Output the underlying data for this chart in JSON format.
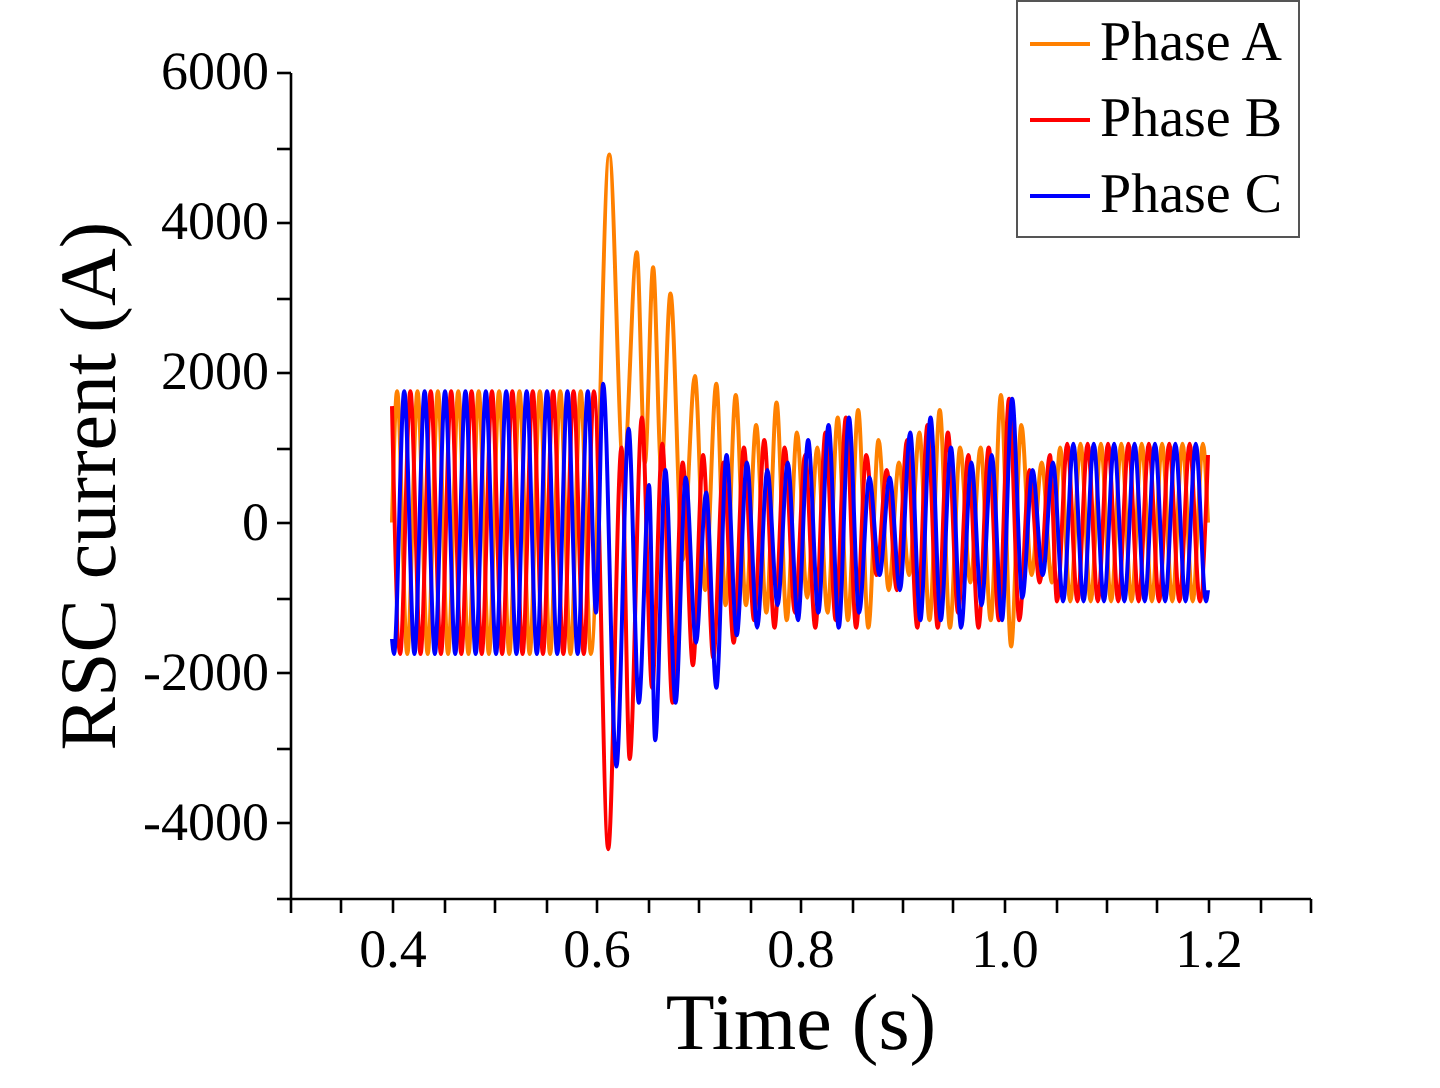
{
  "chart_data": {
    "type": "line",
    "xlabel": "Time (s)",
    "ylabel": "RSC current (A)",
    "xlim": [
      0.3,
      1.3
    ],
    "ylim": [
      -5000,
      6000
    ],
    "xticks": [
      {
        "value": 0.3,
        "label": null
      },
      {
        "value": 0.35,
        "label": null
      },
      0.4,
      {
        "value": 0.45,
        "label": null
      },
      {
        "value": 0.5,
        "label": null
      },
      {
        "value": 0.55,
        "label": null
      },
      0.6,
      {
        "value": 0.65,
        "label": null
      },
      {
        "value": 0.7,
        "label": null
      },
      {
        "value": 0.75,
        "label": null
      },
      0.8,
      {
        "value": 0.85,
        "label": null
      },
      {
        "value": 0.9,
        "label": null
      },
      {
        "value": 0.95,
        "label": null
      },
      {
        "value": 1,
        "label": "1.0"
      },
      {
        "value": 1.05,
        "label": null
      },
      {
        "value": 1.1,
        "label": null
      },
      {
        "value": 1.15,
        "label": null
      },
      1.2,
      {
        "value": 1.25,
        "label": null
      },
      {
        "value": 1.3,
        "label": null
      }
    ],
    "yticks": [
      {
        "value": -5000,
        "label": null
      },
      -4000,
      {
        "value": -3000,
        "label": null
      },
      -2000,
      {
        "value": -1000,
        "label": null
      },
      0,
      {
        "value": 1000,
        "label": null
      },
      2000,
      {
        "value": 3000,
        "label": null
      },
      4000,
      {
        "value": 5000,
        "label": null
      },
      6000
    ],
    "legend": "top right",
    "grid": false,
    "marker": "none",
    "line_style": "solid",
    "series": [
      {
        "name": "Phase A",
        "color": "#ff8000",
        "x": [
          0.4,
          0.405,
          0.415,
          0.425,
          0.435,
          0.445,
          0.455,
          0.465,
          0.475,
          0.485,
          0.495,
          0.505,
          0.515,
          0.525,
          0.535,
          0.545,
          0.555,
          0.565,
          0.575,
          0.585,
          0.595,
          0.613,
          0.627,
          0.64,
          0.648,
          0.656,
          0.664,
          0.673,
          0.685,
          0.697,
          0.707,
          0.718,
          0.727,
          0.737,
          0.747,
          0.757,
          0.767,
          0.777,
          0.787,
          0.797,
          0.807,
          0.817,
          0.827,
          0.837,
          0.847,
          0.857,
          0.867,
          0.877,
          0.887,
          0.897,
          0.907,
          0.917,
          0.927,
          0.937,
          0.947,
          0.957,
          0.967,
          0.977,
          0.987,
          0.997,
          1.007,
          1.017,
          1.027,
          1.037,
          1.047,
          1.055,
          1.065,
          1.075,
          1.085,
          1.095,
          1.105,
          1.115,
          1.125,
          1.135,
          1.145,
          1.155,
          1.165,
          1.175,
          1.185,
          1.195,
          1.2
        ],
        "values": [
          0,
          1750,
          -1750,
          1750,
          -1750,
          1750,
          -1750,
          1750,
          -1750,
          1750,
          -1750,
          1750,
          -1750,
          1750,
          -1750,
          1750,
          -1750,
          1750,
          -1750,
          1750,
          -1750,
          4900,
          700,
          3600,
          800,
          3400,
          700,
          3050,
          -500,
          1950,
          -900,
          1850,
          -1100,
          1700,
          -1100,
          1300,
          -1200,
          1600,
          -1300,
          1200,
          -1000,
          1000,
          -1200,
          1400,
          -1300,
          1500,
          -1400,
          1100,
          -900,
          800,
          -700,
          1200,
          -1300,
          1500,
          -1400,
          1000,
          -800,
          1000,
          -1300,
          1700,
          -1650,
          1300,
          -700,
          800,
          -800,
          1000,
          -1050,
          1050,
          -1050,
          1050,
          -1050,
          1050,
          -1050,
          1050,
          -1050,
          1050,
          -1050,
          1050,
          -1050,
          1050,
          0
        ]
      },
      {
        "name": "Phase B",
        "color": "#ff0000",
        "x": [
          0.4,
          0.408,
          0.418,
          0.428,
          0.438,
          0.448,
          0.458,
          0.468,
          0.478,
          0.488,
          0.498,
          0.508,
          0.518,
          0.528,
          0.538,
          0.548,
          0.558,
          0.568,
          0.578,
          0.588,
          0.598,
          0.612,
          0.625,
          0.633,
          0.645,
          0.655,
          0.665,
          0.675,
          0.685,
          0.695,
          0.705,
          0.715,
          0.725,
          0.735,
          0.745,
          0.755,
          0.765,
          0.775,
          0.785,
          0.795,
          0.805,
          0.815,
          0.825,
          0.835,
          0.845,
          0.855,
          0.865,
          0.875,
          0.885,
          0.895,
          0.905,
          0.915,
          0.925,
          0.935,
          0.945,
          0.955,
          0.965,
          0.975,
          0.985,
          0.995,
          1.005,
          1.015,
          1.025,
          1.035,
          1.045,
          1.052,
          1.062,
          1.072,
          1.082,
          1.092,
          1.102,
          1.112,
          1.122,
          1.132,
          1.142,
          1.152,
          1.162,
          1.172,
          1.182,
          1.192,
          1.2
        ],
        "values": [
          1550,
          -1750,
          1750,
          -1750,
          1750,
          -1750,
          1750,
          -1750,
          1750,
          -1750,
          1750,
          -1750,
          1750,
          -1750,
          1750,
          -1750,
          1750,
          -1750,
          1750,
          -1750,
          1750,
          -4350,
          1000,
          -3150,
          1400,
          -2200,
          1050,
          -2400,
          800,
          -1900,
          900,
          -1800,
          800,
          -1600,
          1000,
          -1300,
          1100,
          -1400,
          1000,
          -1200,
          900,
          -1400,
          1200,
          -1300,
          1400,
          -1400,
          900,
          -700,
          700,
          -900,
          1100,
          -1400,
          1300,
          -1400,
          1200,
          -1200,
          900,
          -1400,
          1000,
          -1300,
          1650,
          -1300,
          700,
          -800,
          900,
          -1050,
          1050,
          -1050,
          1050,
          -1050,
          1050,
          -1050,
          1050,
          -1050,
          1050,
          -1050,
          1050,
          -1050,
          1050,
          -1050,
          900
        ]
      },
      {
        "name": "Phase C",
        "color": "#0000ff",
        "x": [
          0.4,
          0.402,
          0.412,
          0.422,
          0.432,
          0.442,
          0.452,
          0.462,
          0.472,
          0.482,
          0.492,
          0.502,
          0.512,
          0.522,
          0.532,
          0.542,
          0.552,
          0.562,
          0.572,
          0.582,
          0.592,
          0.6,
          0.607,
          0.62,
          0.632,
          0.642,
          0.652,
          0.658,
          0.668,
          0.678,
          0.688,
          0.698,
          0.708,
          0.718,
          0.728,
          0.738,
          0.748,
          0.758,
          0.768,
          0.778,
          0.788,
          0.798,
          0.808,
          0.818,
          0.828,
          0.838,
          0.848,
          0.858,
          0.868,
          0.878,
          0.888,
          0.898,
          0.908,
          0.918,
          0.928,
          0.938,
          0.948,
          0.958,
          0.968,
          0.978,
          0.988,
          0.998,
          1.008,
          1.018,
          1.028,
          1.038,
          1.048,
          1.058,
          1.068,
          1.078,
          1.088,
          1.098,
          1.108,
          1.118,
          1.128,
          1.138,
          1.148,
          1.158,
          1.168,
          1.178,
          1.188,
          1.198,
          1.2
        ],
        "values": [
          -1550,
          -1750,
          1750,
          -1750,
          1750,
          -1750,
          1750,
          -1750,
          1750,
          -1750,
          1750,
          -1750,
          1750,
          -1750,
          1750,
          -1750,
          1750,
          -1750,
          1750,
          -1750,
          1750,
          -1200,
          1850,
          -3250,
          1250,
          -2400,
          500,
          -2900,
          700,
          -2400,
          600,
          -1600,
          400,
          -2200,
          900,
          -1500,
          800,
          -1400,
          700,
          -1100,
          800,
          -1300,
          1100,
          -1200,
          1300,
          -1400,
          1400,
          -1200,
          600,
          -700,
          600,
          -900,
          1200,
          -1300,
          1400,
          -1300,
          1000,
          -1400,
          800,
          -1100,
          900,
          -1300,
          1650,
          -1000,
          700,
          -700,
          800,
          -1050,
          1050,
          -1050,
          1050,
          -1050,
          1050,
          -1050,
          1050,
          -1050,
          1050,
          -1050,
          1050,
          -1050,
          1050,
          -1050,
          -900
        ]
      }
    ]
  }
}
